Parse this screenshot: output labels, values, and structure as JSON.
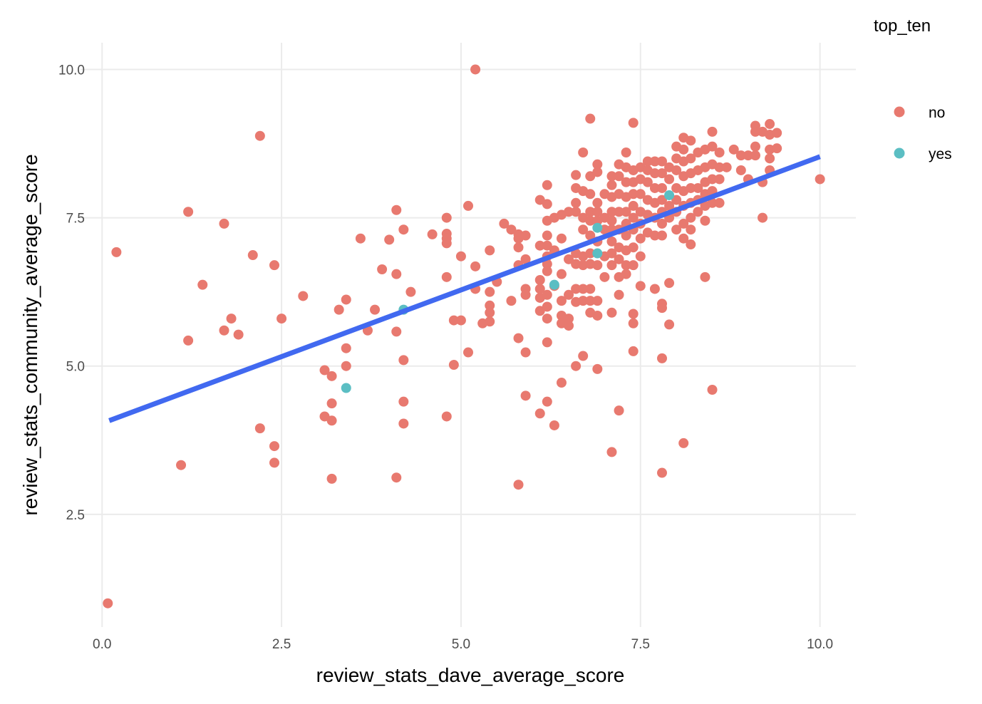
{
  "chart_data": {
    "type": "scatter",
    "title": "",
    "xlabel": "review_stats_dave_average_score",
    "ylabel": "review_stats_community_average_score",
    "xlim": [
      -0.3,
      10.5
    ],
    "ylim": [
      0.6,
      10.45
    ],
    "x_ticks": [
      {
        "value": 0,
        "label": "0.0"
      },
      {
        "value": 2.5,
        "label": "2.5"
      },
      {
        "value": 5,
        "label": "5.0"
      },
      {
        "value": 7.5,
        "label": "7.5"
      },
      {
        "value": 10,
        "label": "10.0"
      }
    ],
    "y_ticks": [
      {
        "value": 2.5,
        "label": "2.5"
      },
      {
        "value": 5,
        "label": "5.0"
      },
      {
        "value": 7.5,
        "label": "7.5"
      },
      {
        "value": 10,
        "label": "10.0"
      }
    ],
    "grid": true,
    "legend": {
      "title": "top_ten",
      "placement": "right"
    },
    "series": [
      {
        "name": "no",
        "color": "#E8796F",
        "points": [
          [
            0.08,
            1.0
          ],
          [
            0.2,
            6.92
          ],
          [
            1.1,
            3.33
          ],
          [
            1.2,
            7.6
          ],
          [
            1.2,
            5.43
          ],
          [
            1.4,
            6.37
          ],
          [
            1.7,
            7.4
          ],
          [
            1.7,
            5.6
          ],
          [
            1.8,
            5.8
          ],
          [
            1.9,
            5.53
          ],
          [
            2.1,
            6.87
          ],
          [
            2.2,
            8.88
          ],
          [
            2.2,
            3.95
          ],
          [
            2.4,
            6.7
          ],
          [
            2.4,
            3.65
          ],
          [
            2.4,
            3.37
          ],
          [
            2.5,
            5.8
          ],
          [
            2.8,
            6.18
          ],
          [
            3.1,
            4.93
          ],
          [
            3.1,
            4.15
          ],
          [
            3.2,
            4.83
          ],
          [
            3.2,
            4.37
          ],
          [
            3.2,
            4.08
          ],
          [
            3.2,
            3.1
          ],
          [
            3.3,
            5.95
          ],
          [
            3.4,
            6.12
          ],
          [
            3.4,
            5.3
          ],
          [
            3.4,
            5.0
          ],
          [
            3.6,
            7.15
          ],
          [
            3.7,
            5.6
          ],
          [
            3.8,
            5.95
          ],
          [
            3.9,
            6.63
          ],
          [
            4.0,
            7.13
          ],
          [
            4.1,
            7.63
          ],
          [
            4.1,
            6.55
          ],
          [
            4.1,
            5.58
          ],
          [
            4.1,
            3.12
          ],
          [
            4.2,
            7.3
          ],
          [
            4.2,
            5.1
          ],
          [
            4.2,
            4.4
          ],
          [
            4.2,
            4.03
          ],
          [
            4.3,
            6.25
          ],
          [
            4.6,
            7.22
          ],
          [
            4.8,
            7.5
          ],
          [
            4.8,
            7.23
          ],
          [
            4.8,
            7.15
          ],
          [
            4.8,
            7.07
          ],
          [
            4.8,
            6.5
          ],
          [
            4.8,
            4.15
          ],
          [
            4.9,
            5.77
          ],
          [
            4.9,
            5.02
          ],
          [
            5.0,
            6.85
          ],
          [
            5.0,
            5.77
          ],
          [
            5.1,
            7.7
          ],
          [
            5.1,
            5.23
          ],
          [
            5.2,
            10.0
          ],
          [
            5.2,
            6.68
          ],
          [
            5.2,
            6.3
          ],
          [
            5.3,
            5.72
          ],
          [
            5.4,
            6.95
          ],
          [
            5.4,
            6.25
          ],
          [
            5.4,
            6.02
          ],
          [
            5.4,
            5.9
          ],
          [
            5.4,
            5.75
          ],
          [
            5.5,
            6.42
          ],
          [
            5.6,
            7.4
          ],
          [
            5.7,
            7.3
          ],
          [
            5.7,
            6.1
          ],
          [
            5.8,
            7.22
          ],
          [
            5.8,
            7.15
          ],
          [
            5.8,
            7.0
          ],
          [
            5.8,
            6.7
          ],
          [
            5.8,
            5.47
          ],
          [
            5.8,
            3.0
          ],
          [
            5.9,
            7.2
          ],
          [
            5.9,
            6.8
          ],
          [
            5.9,
            6.3
          ],
          [
            5.9,
            6.2
          ],
          [
            5.9,
            5.23
          ],
          [
            5.9,
            4.5
          ],
          [
            6.1,
            7.8
          ],
          [
            6.1,
            7.03
          ],
          [
            6.1,
            6.45
          ],
          [
            6.1,
            6.3
          ],
          [
            6.1,
            6.15
          ],
          [
            6.1,
            5.93
          ],
          [
            6.1,
            4.2
          ],
          [
            6.2,
            8.05
          ],
          [
            6.2,
            7.73
          ],
          [
            6.2,
            7.45
          ],
          [
            6.2,
            7.2
          ],
          [
            6.2,
            7.03
          ],
          [
            6.2,
            6.85
          ],
          [
            6.2,
            6.72
          ],
          [
            6.2,
            6.6
          ],
          [
            6.2,
            6.2
          ],
          [
            6.2,
            6.0
          ],
          [
            6.2,
            5.8
          ],
          [
            6.2,
            5.4
          ],
          [
            6.2,
            4.4
          ],
          [
            6.3,
            7.5
          ],
          [
            6.3,
            6.95
          ],
          [
            6.3,
            6.35
          ],
          [
            6.3,
            4.0
          ],
          [
            6.4,
            7.55
          ],
          [
            6.4,
            7.15
          ],
          [
            6.4,
            6.55
          ],
          [
            6.4,
            6.1
          ],
          [
            6.4,
            5.85
          ],
          [
            6.4,
            5.72
          ],
          [
            6.4,
            4.72
          ],
          [
            6.5,
            7.6
          ],
          [
            6.5,
            6.8
          ],
          [
            6.5,
            6.2
          ],
          [
            6.5,
            5.8
          ],
          [
            6.5,
            5.68
          ],
          [
            6.6,
            8.22
          ],
          [
            6.6,
            8.0
          ],
          [
            6.6,
            7.75
          ],
          [
            6.6,
            7.6
          ],
          [
            6.6,
            6.9
          ],
          [
            6.6,
            6.72
          ],
          [
            6.6,
            6.3
          ],
          [
            6.6,
            6.08
          ],
          [
            6.6,
            5.0
          ],
          [
            6.7,
            8.6
          ],
          [
            6.7,
            7.95
          ],
          [
            6.7,
            7.5
          ],
          [
            6.7,
            7.3
          ],
          [
            6.7,
            6.85
          ],
          [
            6.7,
            6.7
          ],
          [
            6.7,
            6.3
          ],
          [
            6.7,
            6.1
          ],
          [
            6.7,
            5.17
          ],
          [
            6.8,
            9.17
          ],
          [
            6.8,
            8.2
          ],
          [
            6.8,
            7.9
          ],
          [
            6.8,
            7.6
          ],
          [
            6.8,
            7.45
          ],
          [
            6.8,
            7.2
          ],
          [
            6.8,
            6.9
          ],
          [
            6.8,
            6.72
          ],
          [
            6.8,
            6.3
          ],
          [
            6.8,
            6.1
          ],
          [
            6.8,
            5.9
          ],
          [
            6.9,
            8.4
          ],
          [
            6.9,
            8.27
          ],
          [
            6.9,
            7.75
          ],
          [
            6.9,
            7.6
          ],
          [
            6.9,
            7.45
          ],
          [
            6.9,
            7.1
          ],
          [
            6.9,
            6.7
          ],
          [
            6.9,
            6.1
          ],
          [
            6.9,
            5.85
          ],
          [
            6.9,
            4.95
          ],
          [
            7.0,
            7.9
          ],
          [
            7.0,
            7.5
          ],
          [
            7.0,
            7.3
          ],
          [
            7.0,
            6.85
          ],
          [
            7.0,
            6.5
          ],
          [
            7.1,
            8.2
          ],
          [
            7.1,
            8.05
          ],
          [
            7.1,
            7.85
          ],
          [
            7.1,
            7.6
          ],
          [
            7.1,
            7.45
          ],
          [
            7.1,
            7.3
          ],
          [
            7.1,
            7.1
          ],
          [
            7.1,
            6.9
          ],
          [
            7.1,
            6.7
          ],
          [
            7.1,
            5.9
          ],
          [
            7.1,
            3.55
          ],
          [
            7.2,
            8.4
          ],
          [
            7.2,
            8.2
          ],
          [
            7.2,
            7.9
          ],
          [
            7.2,
            7.6
          ],
          [
            7.2,
            7.3
          ],
          [
            7.2,
            7.0
          ],
          [
            7.2,
            6.8
          ],
          [
            7.2,
            6.5
          ],
          [
            7.2,
            6.2
          ],
          [
            7.2,
            4.25
          ],
          [
            7.3,
            8.6
          ],
          [
            7.3,
            8.35
          ],
          [
            7.3,
            8.1
          ],
          [
            7.3,
            7.85
          ],
          [
            7.3,
            7.6
          ],
          [
            7.3,
            7.4
          ],
          [
            7.3,
            7.2
          ],
          [
            7.3,
            6.95
          ],
          [
            7.3,
            6.7
          ],
          [
            7.3,
            6.55
          ],
          [
            7.4,
            9.1
          ],
          [
            7.4,
            8.3
          ],
          [
            7.4,
            8.1
          ],
          [
            7.4,
            7.9
          ],
          [
            7.4,
            7.7
          ],
          [
            7.4,
            7.5
          ],
          [
            7.4,
            7.3
          ],
          [
            7.4,
            7.0
          ],
          [
            7.4,
            6.7
          ],
          [
            7.4,
            5.88
          ],
          [
            7.4,
            5.72
          ],
          [
            7.4,
            5.25
          ],
          [
            7.5,
            8.35
          ],
          [
            7.5,
            8.15
          ],
          [
            7.5,
            7.9
          ],
          [
            7.5,
            7.6
          ],
          [
            7.5,
            7.4
          ],
          [
            7.5,
            7.15
          ],
          [
            7.5,
            6.85
          ],
          [
            7.5,
            6.35
          ],
          [
            7.6,
            8.45
          ],
          [
            7.6,
            8.3
          ],
          [
            7.6,
            8.1
          ],
          [
            7.6,
            7.8
          ],
          [
            7.6,
            7.55
          ],
          [
            7.6,
            7.25
          ],
          [
            7.7,
            8.45
          ],
          [
            7.7,
            8.25
          ],
          [
            7.7,
            8.0
          ],
          [
            7.7,
            7.75
          ],
          [
            7.7,
            7.5
          ],
          [
            7.7,
            7.2
          ],
          [
            7.7,
            6.3
          ],
          [
            7.8,
            8.45
          ],
          [
            7.8,
            8.25
          ],
          [
            7.8,
            8.0
          ],
          [
            7.8,
            7.8
          ],
          [
            7.8,
            7.6
          ],
          [
            7.8,
            7.4
          ],
          [
            7.8,
            7.2
          ],
          [
            7.8,
            6.05
          ],
          [
            7.8,
            5.98
          ],
          [
            7.8,
            5.13
          ],
          [
            7.8,
            3.2
          ],
          [
            7.9,
            8.35
          ],
          [
            7.9,
            8.15
          ],
          [
            7.9,
            7.7
          ],
          [
            7.9,
            7.5
          ],
          [
            7.9,
            6.4
          ],
          [
            7.9,
            5.7
          ],
          [
            8.0,
            8.7
          ],
          [
            8.0,
            8.5
          ],
          [
            8.0,
            8.3
          ],
          [
            8.0,
            8.0
          ],
          [
            8.0,
            7.8
          ],
          [
            8.0,
            7.6
          ],
          [
            8.0,
            7.3
          ],
          [
            8.1,
            8.85
          ],
          [
            8.1,
            8.65
          ],
          [
            8.1,
            8.45
          ],
          [
            8.1,
            8.2
          ],
          [
            8.1,
            7.95
          ],
          [
            8.1,
            7.7
          ],
          [
            8.1,
            7.4
          ],
          [
            8.1,
            7.15
          ],
          [
            8.1,
            3.7
          ],
          [
            8.2,
            8.8
          ],
          [
            8.2,
            8.5
          ],
          [
            8.2,
            8.25
          ],
          [
            8.2,
            8.0
          ],
          [
            8.2,
            7.75
          ],
          [
            8.2,
            7.5
          ],
          [
            8.2,
            7.3
          ],
          [
            8.2,
            7.05
          ],
          [
            8.3,
            8.6
          ],
          [
            8.3,
            8.3
          ],
          [
            8.3,
            8.0
          ],
          [
            8.3,
            7.8
          ],
          [
            8.3,
            7.6
          ],
          [
            8.4,
            8.65
          ],
          [
            8.4,
            8.35
          ],
          [
            8.4,
            8.1
          ],
          [
            8.4,
            7.9
          ],
          [
            8.4,
            7.7
          ],
          [
            8.4,
            7.45
          ],
          [
            8.4,
            6.5
          ],
          [
            8.5,
            8.95
          ],
          [
            8.5,
            8.7
          ],
          [
            8.5,
            8.4
          ],
          [
            8.5,
            8.15
          ],
          [
            8.5,
            7.95
          ],
          [
            8.5,
            7.75
          ],
          [
            8.5,
            4.6
          ],
          [
            8.6,
            8.6
          ],
          [
            8.6,
            8.35
          ],
          [
            8.6,
            8.15
          ],
          [
            8.6,
            7.75
          ],
          [
            8.7,
            8.35
          ],
          [
            8.8,
            8.65
          ],
          [
            8.9,
            8.55
          ],
          [
            8.9,
            8.3
          ],
          [
            9.0,
            8.55
          ],
          [
            9.0,
            8.15
          ],
          [
            9.1,
            9.05
          ],
          [
            9.1,
            8.95
          ],
          [
            9.1,
            8.7
          ],
          [
            9.1,
            8.55
          ],
          [
            9.2,
            8.95
          ],
          [
            9.2,
            8.1
          ],
          [
            9.2,
            7.5
          ],
          [
            9.3,
            9.08
          ],
          [
            9.3,
            8.9
          ],
          [
            9.3,
            8.65
          ],
          [
            9.3,
            8.5
          ],
          [
            9.3,
            8.3
          ],
          [
            9.4,
            8.93
          ],
          [
            9.4,
            8.67
          ],
          [
            10.0,
            8.15
          ]
        ]
      },
      {
        "name": "yes",
        "color": "#5BBEC3",
        "points": [
          [
            3.4,
            4.63
          ],
          [
            4.2,
            5.95
          ],
          [
            6.3,
            6.37
          ],
          [
            6.9,
            7.33
          ],
          [
            6.9,
            6.9
          ],
          [
            7.9,
            7.88
          ]
        ]
      }
    ],
    "trend_line": {
      "color": "#4169F0",
      "x": [
        0.1,
        10.0
      ],
      "y": [
        4.08,
        8.53
      ]
    }
  }
}
